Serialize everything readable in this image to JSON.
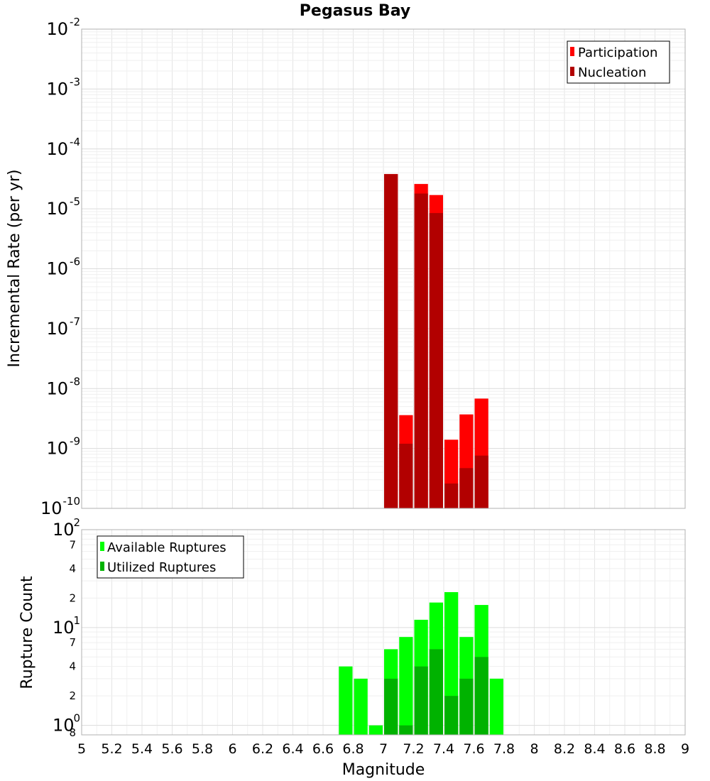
{
  "chart_data": [
    {
      "type": "bar",
      "title": "Pegasus Bay",
      "ylabel": "Incremental Rate (per yr)",
      "xlabel": "",
      "yscale": "log",
      "ylim": [
        1e-10,
        0.01
      ],
      "y_ticks": [
        "10^-10",
        "10^-9",
        "10^-8",
        "10^-7",
        "10^-6",
        "10^-5",
        "10^-4",
        "10^-3",
        "10^-2"
      ],
      "bar_width": 0.1,
      "legend": {
        "position": "top-right"
      },
      "grid": true,
      "series": [
        {
          "name": "Participation",
          "color": "#ff0000",
          "x": [
            7.05,
            7.15,
            7.25,
            7.35,
            7.45,
            7.55,
            7.65
          ],
          "values": [
            3.8e-05,
            3.6e-09,
            2.6e-05,
            1.7e-05,
            1.4e-09,
            3.7e-09,
            6.8e-09
          ]
        },
        {
          "name": "Nucleation",
          "color": "#b20000",
          "x": [
            7.05,
            7.15,
            7.25,
            7.35,
            7.45,
            7.55,
            7.65
          ],
          "values": [
            3.8e-05,
            1.2e-09,
            1.8e-05,
            8.5e-06,
            2.6e-10,
            4.7e-10,
            7.6e-10
          ]
        }
      ]
    },
    {
      "type": "bar",
      "ylabel": "Rupture Count",
      "xlabel": "Magnitude",
      "yscale": "log",
      "ylim": [
        0.8,
        100
      ],
      "xlim": [
        5,
        9
      ],
      "x_ticks": [
        "5",
        "5.2",
        "5.4",
        "5.6",
        "5.8",
        "6",
        "6.2",
        "6.4",
        "6.6",
        "6.8",
        "7",
        "7.2",
        "7.4",
        "7.6",
        "7.8",
        "8",
        "8.2",
        "8.4",
        "8.6",
        "8.8",
        "9"
      ],
      "y_major_ticks": [
        "10^0",
        "10^1",
        "10^2"
      ],
      "y_minor_labels": [
        {
          "value": 0.8,
          "label": "8"
        },
        {
          "value": 2,
          "label": "2"
        },
        {
          "value": 4,
          "label": "4"
        },
        {
          "value": 7,
          "label": "7"
        },
        {
          "value": 20,
          "label": "2"
        },
        {
          "value": 40,
          "label": "4"
        },
        {
          "value": 70,
          "label": "7"
        }
      ],
      "bar_width": 0.1,
      "legend": {
        "position": "top-left"
      },
      "grid": true,
      "series": [
        {
          "name": "Available Ruptures",
          "color": "#00ff00",
          "x": [
            6.75,
            6.85,
            6.95,
            7.05,
            7.15,
            7.25,
            7.35,
            7.45,
            7.55,
            7.65,
            7.75
          ],
          "values": [
            4,
            3,
            1,
            6,
            8,
            12,
            18,
            23,
            8,
            17,
            3
          ]
        },
        {
          "name": "Utilized Ruptures",
          "color": "#00b200",
          "x": [
            7.05,
            7.15,
            7.25,
            7.35,
            7.45,
            7.55,
            7.65
          ],
          "values": [
            3,
            1,
            4,
            6,
            2,
            3,
            5
          ]
        }
      ]
    }
  ]
}
